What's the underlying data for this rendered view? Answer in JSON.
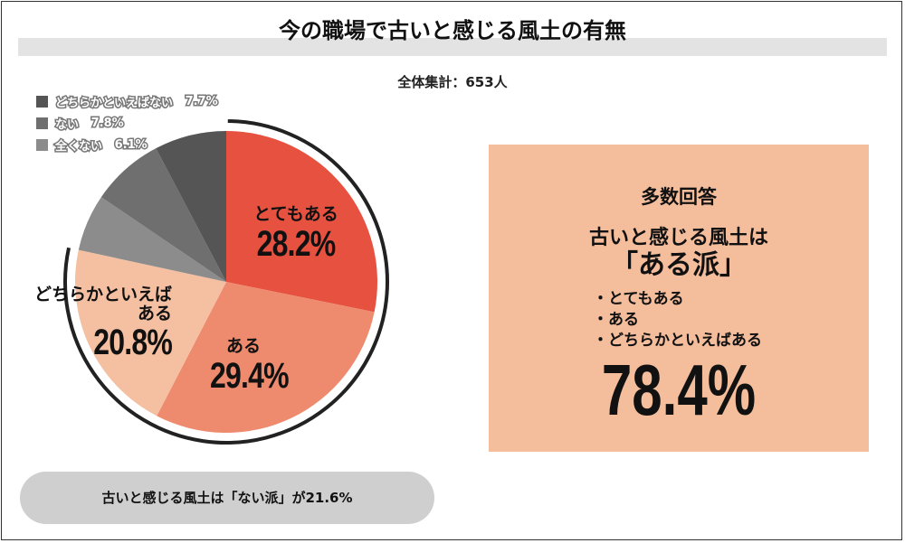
{
  "title": "今の職場で古いと感じる風土の有無",
  "total_label": "全体集計：653人",
  "chart_data": {
    "type": "pie",
    "title": "今の職場で古いと感じる風土の有無",
    "start": "top",
    "direction": "clockwise",
    "slices": [
      {
        "label": "とてもある",
        "value": 28.2,
        "display": "28.2%",
        "color": "#e65140"
      },
      {
        "label": "ある",
        "value": 29.4,
        "display": "29.4%",
        "color": "#ee8a6d"
      },
      {
        "label": "どちらかといえばある",
        "value": 20.8,
        "display": "20.8%",
        "color": "#f4c0a1"
      },
      {
        "label": "全くない",
        "value": 6.1,
        "display": "6.1%",
        "color": "#8c8c8c"
      },
      {
        "label": "ない",
        "value": 7.8,
        "display": "7.8%",
        "color": "#6f6f6f"
      },
      {
        "label": "どちらかといえばない",
        "value": 7.7,
        "display": "7.7%",
        "color": "#555555"
      }
    ],
    "legend": [
      {
        "label": "どちらかといえばない",
        "display": "7.7%",
        "color": "#555555"
      },
      {
        "label": "ない",
        "display": "7.8%",
        "color": "#6f6f6f"
      },
      {
        "label": "全くない",
        "display": "6.1%",
        "color": "#8c8c8c"
      }
    ],
    "legend_position": "top-left",
    "highlight_arc_total": 78.4
  },
  "labels": {
    "l1_name": "とてもある",
    "l1_pct": "28.2%",
    "l2_name": "ある",
    "l2_pct": "29.4%",
    "l3_name1": "どちらかといえば",
    "l3_name2": "ある",
    "l3_pct": "20.8%"
  },
  "summary": {
    "heading": "多数回答",
    "line1": "古いと感じる風土は",
    "group": "「ある派」",
    "items": [
      "・とてもある",
      "・ある",
      "・どちらかといえばある"
    ],
    "percent": "78.4%",
    "bg_color": "#f4bd9c"
  },
  "footer_pill": "古いと感じる風土は「ない派」が21.6%"
}
